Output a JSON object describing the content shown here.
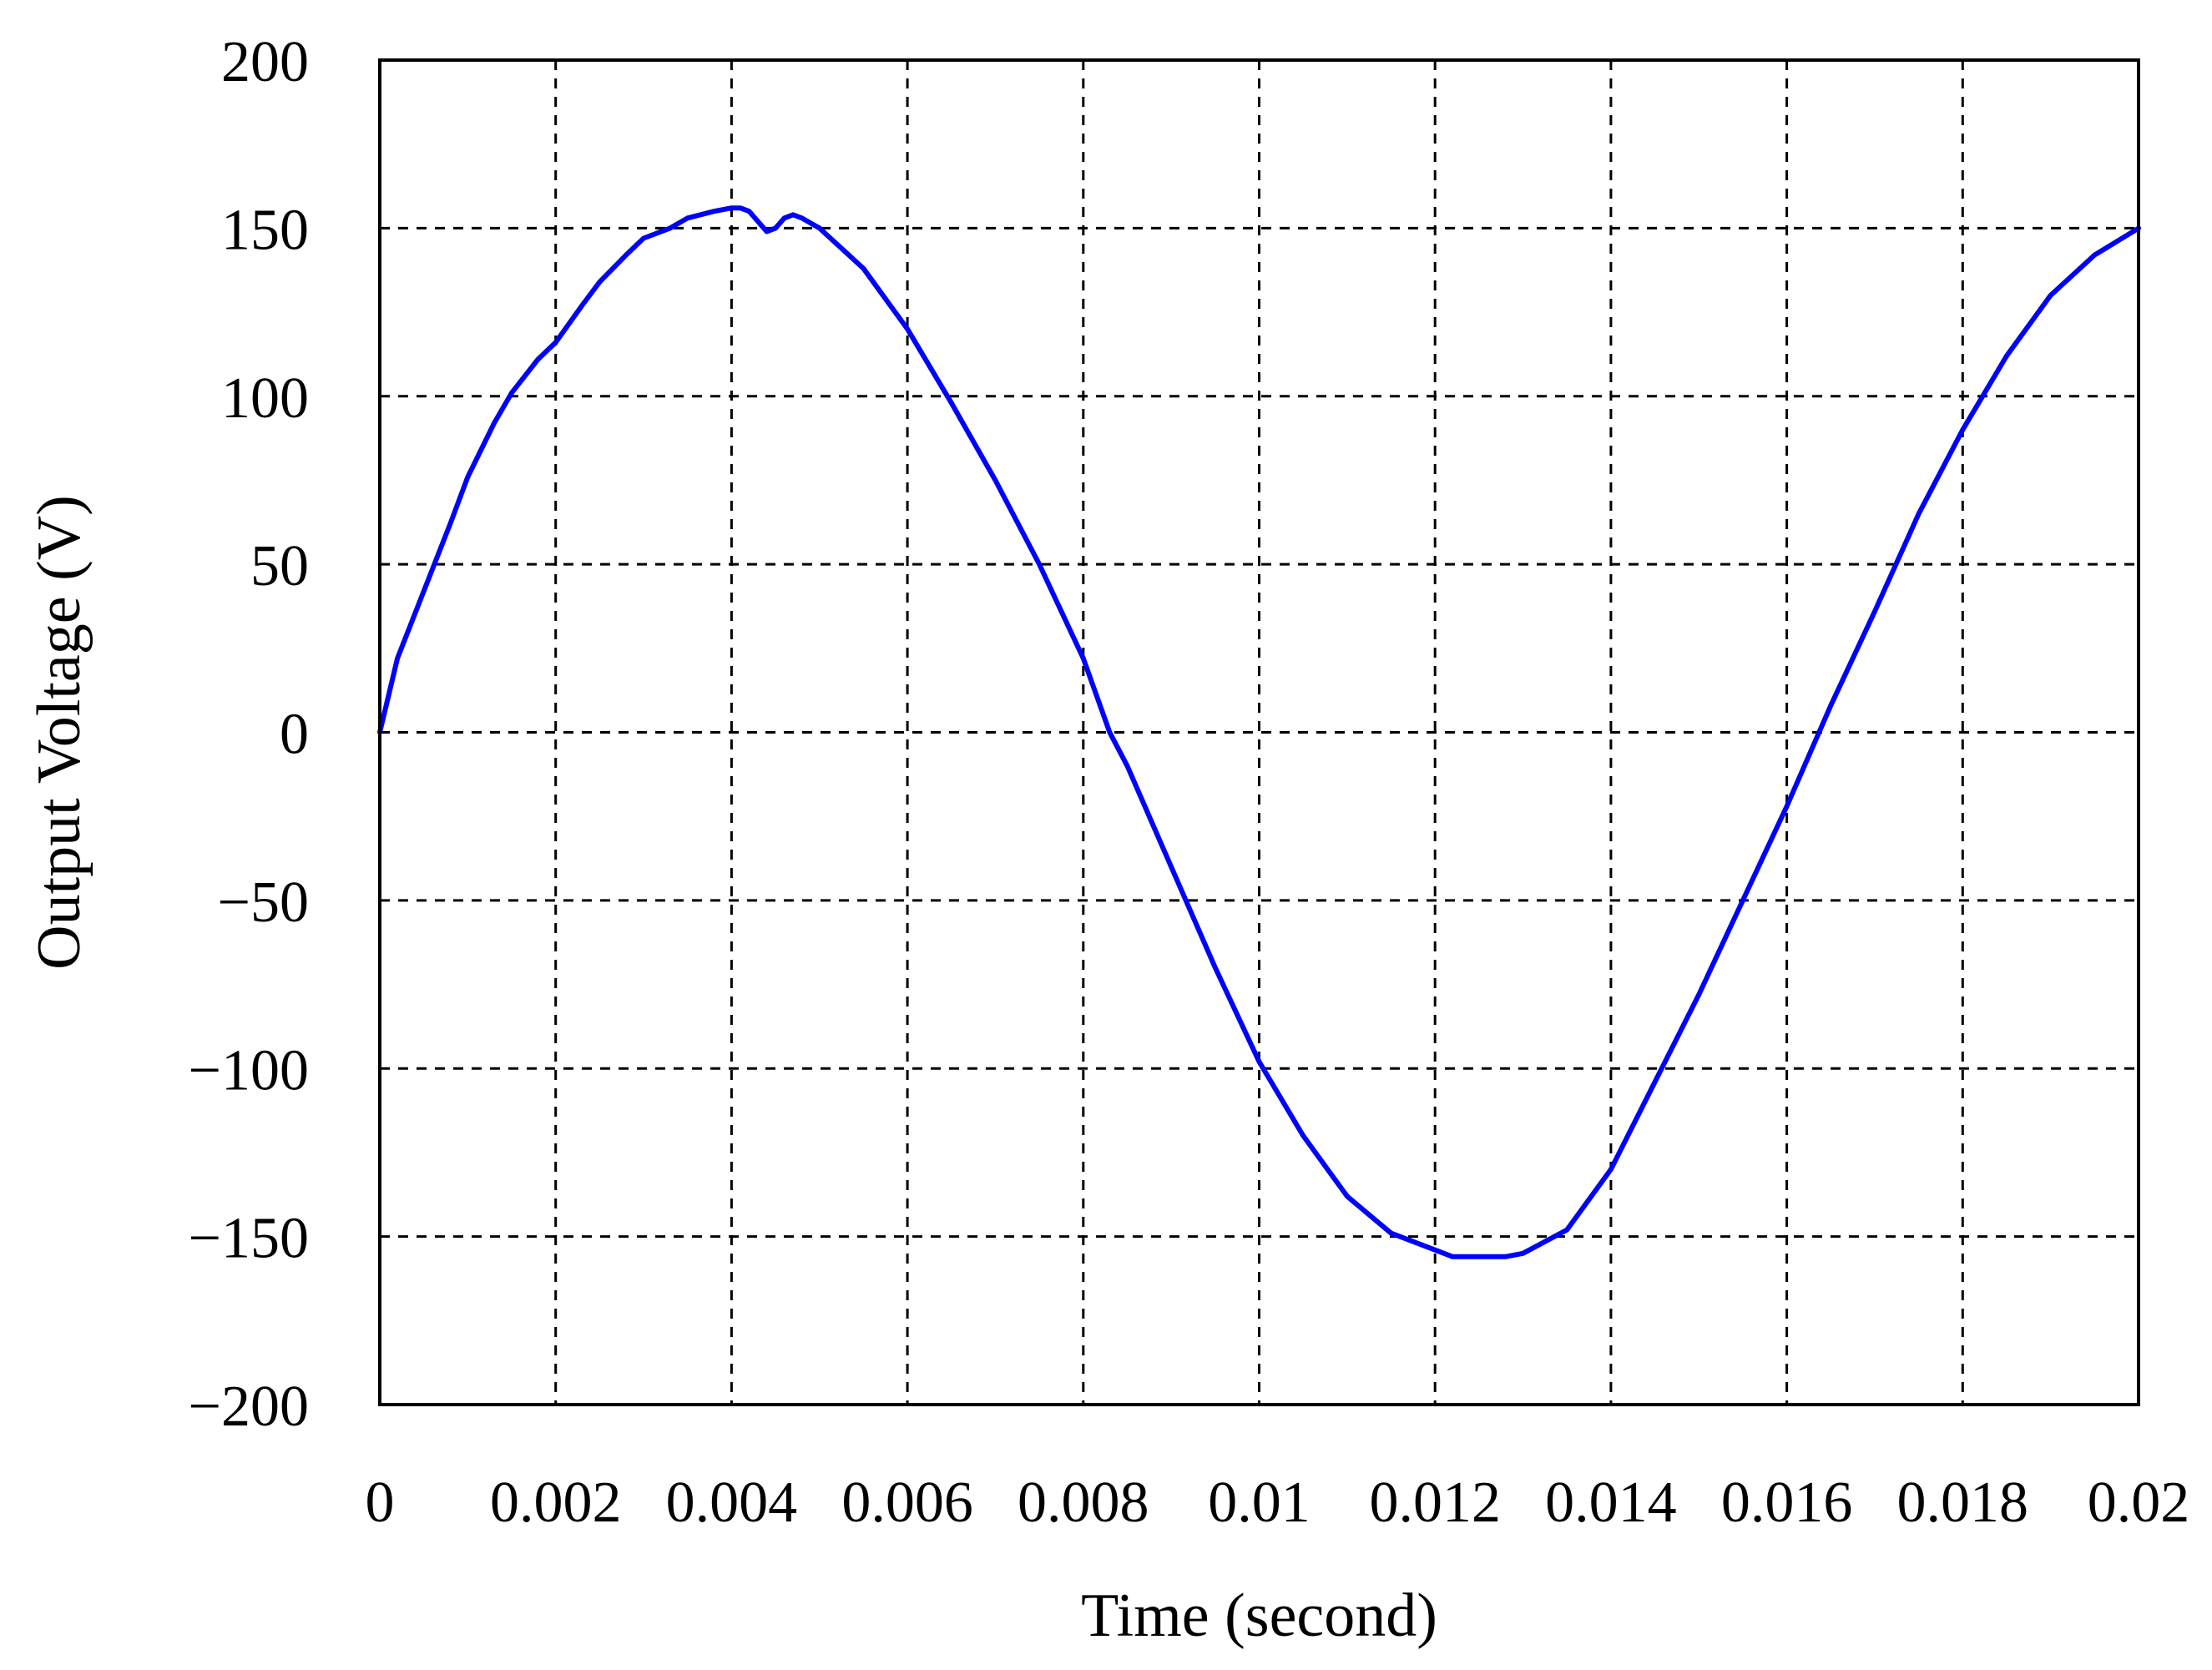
{
  "chart_data": {
    "type": "line",
    "title": "",
    "xlabel": "Time (second)",
    "ylabel": "Output Voltage (V)",
    "xlim": [
      0,
      0.02
    ],
    "ylim": [
      -200,
      200
    ],
    "grid": true,
    "grid_style": "dashed",
    "legend": "none",
    "x_ticks": [
      0,
      0.002,
      0.004,
      0.006,
      0.008,
      0.01,
      0.012,
      0.014,
      0.016,
      0.018,
      0.02
    ],
    "x_tick_labels": [
      "0",
      "0.002",
      "0.004",
      "0.006",
      "0.008",
      "0.01",
      "0.012",
      "0.014",
      "0.016",
      "0.018",
      "0.02"
    ],
    "y_ticks": [
      200,
      150,
      100,
      50,
      0,
      -50,
      -100,
      -150,
      -200
    ],
    "y_tick_labels": [
      "200",
      "150",
      "100",
      "50",
      "0",
      "−50",
      "−100",
      "−150",
      "−200"
    ],
    "colors": {
      "series": "#0000ff",
      "grid": "#000000",
      "frame": "#000000"
    },
    "series": [
      {
        "x": [
          0,
          0.0002,
          0.0005,
          0.0008,
          0.001,
          0.0013,
          0.0015,
          0.0018,
          0.002,
          0.0023,
          0.0025,
          0.0028,
          0.003,
          0.0033,
          0.0035,
          0.0038,
          0.004,
          0.0041,
          0.0042,
          0.0043,
          0.0044,
          0.0045,
          0.0046,
          0.0047,
          0.0048,
          0.005,
          0.0055,
          0.006,
          0.0065,
          0.007,
          0.0075,
          0.008,
          0.0083,
          0.0085,
          0.009,
          0.0095,
          0.01,
          0.0105,
          0.011,
          0.0115,
          0.012,
          0.0122,
          0.0125,
          0.0128,
          0.013,
          0.0135,
          0.014,
          0.0145,
          0.015,
          0.0155,
          0.016,
          0.0165,
          0.017,
          0.0175,
          0.018,
          0.0185,
          0.019,
          0.0195,
          0.02
        ],
        "y": [
          0,
          22,
          42,
          62,
          76,
          92,
          101,
          111,
          116,
          127,
          134,
          142,
          147,
          150,
          153,
          155,
          156,
          156,
          155,
          152,
          149,
          150,
          153,
          154,
          153,
          150,
          138,
          120,
          98,
          75,
          50,
          22,
          0,
          -10,
          -40,
          -70,
          -98,
          -120,
          -138,
          -149,
          -154,
          -156,
          -156,
          -156,
          -155,
          -148,
          -130,
          -104,
          -78,
          -50,
          -22,
          8,
          36,
          65,
          90,
          112,
          130,
          142,
          150
        ]
      }
    ]
  }
}
